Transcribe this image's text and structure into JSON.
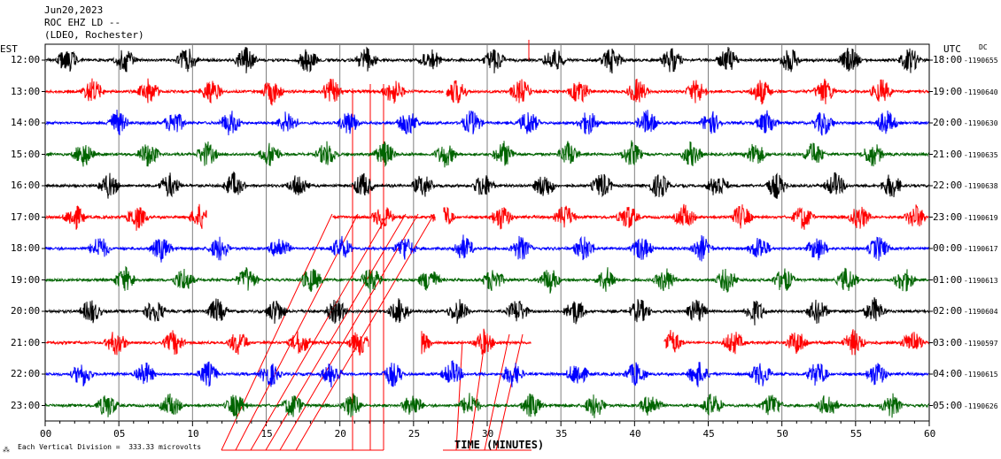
{
  "header": {
    "date": "Jun20,2023",
    "station": "ROC EHZ LD --",
    "network": "(LDEO, Rochester)"
  },
  "left_zone_label": "EST",
  "right_zone_label": "UTC",
  "right_dc_label": "DC",
  "footer": {
    "scale_text": "Each Vertical Division =  333.33 microvolts",
    "xlabel": "TIME (MINUTES)"
  },
  "colors": {
    "trace_cycle": [
      "#000000",
      "#ff0000",
      "#0000ff",
      "#006400"
    ],
    "grid": "#000000",
    "event_line": "#ff0000"
  },
  "chart_data": {
    "type": "line",
    "title": "Jun20,2023 ROC EHZ LD -- (LDEO, Rochester)",
    "xlabel": "TIME (MINUTES)",
    "xlim": [
      0,
      60
    ],
    "xticks": [
      "00",
      "05",
      "10",
      "15",
      "20",
      "25",
      "30",
      "35",
      "40",
      "45",
      "50",
      "55",
      "60"
    ],
    "grid": true,
    "rows": [
      {
        "est": "12:00",
        "utc": "18:00",
        "dc": "-1190655",
        "color": "#000000"
      },
      {
        "est": "13:00",
        "utc": "19:00",
        "dc": "-1190640",
        "color": "#ff0000"
      },
      {
        "est": "14:00",
        "utc": "20:00",
        "dc": "-1190630",
        "color": "#0000ff"
      },
      {
        "est": "15:00",
        "utc": "21:00",
        "dc": "-1190635",
        "color": "#006400"
      },
      {
        "est": "16:00",
        "utc": "22:00",
        "dc": "-1190638",
        "color": "#000000"
      },
      {
        "est": "17:00",
        "utc": "23:00",
        "dc": "-1190619",
        "color": "#ff0000"
      },
      {
        "est": "18:00",
        "utc": "00:00",
        "dc": "-1190617",
        "color": "#0000ff"
      },
      {
        "est": "19:00",
        "utc": "01:00",
        "dc": "-1190613",
        "color": "#006400"
      },
      {
        "est": "20:00",
        "utc": "02:00",
        "dc": "-1190604",
        "color": "#000000"
      },
      {
        "est": "21:00",
        "utc": "03:00",
        "dc": "-1190597",
        "color": "#ff0000"
      },
      {
        "est": "22:00",
        "utc": "04:00",
        "dc": "-1190615",
        "color": "#0000ff"
      },
      {
        "est": "23:00",
        "utc": "05:00",
        "dc": "-1190626",
        "color": "#006400"
      }
    ],
    "gaps_minutes": [
      {
        "row": 1,
        "from": 27.0,
        "to": 27.2
      },
      {
        "row": 5,
        "from": 11.0,
        "to": 19.5
      },
      {
        "row": 5,
        "from": 26.5,
        "to": 27.0
      },
      {
        "row": 9,
        "from": 22.0,
        "to": 25.5
      },
      {
        "row": 9,
        "from": 33.0,
        "to": 42.0
      }
    ]
  }
}
